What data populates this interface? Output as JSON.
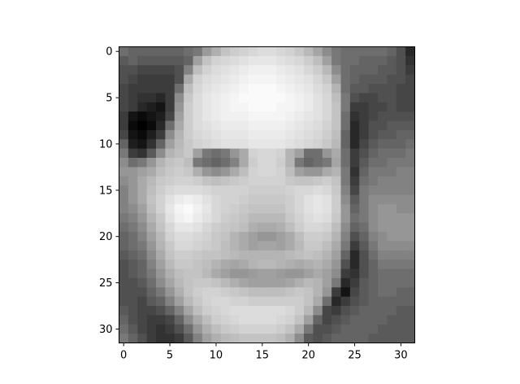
{
  "chart_data": {
    "type": "heatmap",
    "title": "",
    "xlabel": "",
    "ylabel": "",
    "colormap": "gray",
    "rows": 32,
    "cols": 32,
    "xlim": [
      -0.5,
      31.5
    ],
    "ylim": [
      31.5,
      -0.5
    ],
    "x_ticks": [
      0,
      5,
      10,
      15,
      20,
      25,
      30
    ],
    "x_tick_labels": [
      "0",
      "5",
      "10",
      "15",
      "20",
      "25",
      "30"
    ],
    "y_ticks": [
      0,
      5,
      10,
      15,
      20,
      25,
      30
    ],
    "y_tick_labels": [
      "0",
      "5",
      "10",
      "15",
      "20",
      "25",
      "30"
    ],
    "values": [
      [
        110,
        100,
        100,
        100,
        100,
        100,
        100,
        110,
        120,
        155,
        175,
        195,
        205,
        210,
        215,
        220,
        220,
        215,
        210,
        200,
        185,
        165,
        140,
        120,
        110,
        110,
        110,
        110,
        110,
        100,
        80,
        40
      ],
      [
        90,
        100,
        90,
        90,
        90,
        90,
        90,
        100,
        160,
        195,
        210,
        215,
        220,
        225,
        230,
        230,
        230,
        225,
        220,
        215,
        205,
        190,
        160,
        120,
        110,
        110,
        100,
        100,
        100,
        90,
        80,
        50
      ],
      [
        80,
        80,
        70,
        70,
        70,
        70,
        80,
        130,
        190,
        210,
        220,
        225,
        230,
        235,
        240,
        240,
        240,
        235,
        230,
        225,
        215,
        205,
        185,
        140,
        110,
        100,
        100,
        100,
        90,
        90,
        80,
        60
      ],
      [
        80,
        70,
        60,
        60,
        60,
        60,
        80,
        170,
        210,
        220,
        225,
        230,
        235,
        240,
        245,
        245,
        245,
        240,
        235,
        230,
        225,
        215,
        200,
        160,
        110,
        100,
        90,
        90,
        90,
        80,
        80,
        70
      ],
      [
        70,
        60,
        60,
        60,
        60,
        60,
        110,
        190,
        215,
        225,
        230,
        235,
        240,
        245,
        250,
        250,
        250,
        245,
        240,
        235,
        230,
        220,
        210,
        180,
        110,
        90,
        90,
        80,
        80,
        80,
        70,
        70
      ],
      [
        70,
        60,
        50,
        50,
        40,
        60,
        140,
        200,
        220,
        230,
        235,
        240,
        245,
        250,
        250,
        250,
        250,
        250,
        245,
        240,
        235,
        225,
        215,
        190,
        120,
        80,
        70,
        70,
        80,
        80,
        70,
        70
      ],
      [
        70,
        60,
        40,
        30,
        20,
        60,
        150,
        205,
        220,
        230,
        235,
        240,
        245,
        245,
        250,
        250,
        250,
        245,
        245,
        240,
        235,
        225,
        215,
        195,
        120,
        60,
        60,
        70,
        70,
        80,
        70,
        70
      ],
      [
        60,
        20,
        10,
        20,
        30,
        70,
        160,
        205,
        220,
        230,
        235,
        240,
        240,
        240,
        245,
        245,
        245,
        245,
        240,
        235,
        230,
        225,
        215,
        195,
        110,
        50,
        60,
        70,
        80,
        80,
        80,
        80
      ],
      [
        60,
        10,
        0,
        10,
        40,
        110,
        170,
        205,
        220,
        225,
        230,
        235,
        235,
        235,
        240,
        240,
        240,
        240,
        235,
        230,
        225,
        220,
        210,
        195,
        110,
        40,
        60,
        80,
        80,
        90,
        90,
        90
      ],
      [
        70,
        20,
        10,
        30,
        60,
        140,
        180,
        205,
        215,
        220,
        225,
        230,
        230,
        230,
        235,
        235,
        235,
        235,
        230,
        225,
        220,
        215,
        205,
        190,
        100,
        40,
        60,
        80,
        90,
        90,
        100,
        100
      ],
      [
        100,
        30,
        20,
        50,
        100,
        160,
        185,
        200,
        210,
        215,
        220,
        225,
        225,
        225,
        230,
        230,
        230,
        230,
        225,
        220,
        215,
        210,
        200,
        185,
        100,
        40,
        70,
        90,
        100,
        100,
        100,
        110
      ],
      [
        120,
        60,
        50,
        90,
        140,
        180,
        190,
        200,
        160,
        120,
        110,
        120,
        150,
        170,
        210,
        215,
        215,
        210,
        180,
        160,
        110,
        110,
        150,
        170,
        110,
        60,
        80,
        100,
        110,
        110,
        110,
        120
      ],
      [
        140,
        110,
        120,
        150,
        180,
        195,
        200,
        190,
        120,
        110,
        100,
        110,
        130,
        170,
        205,
        215,
        215,
        205,
        180,
        120,
        100,
        110,
        120,
        165,
        110,
        60,
        90,
        110,
        110,
        120,
        120,
        120
      ],
      [
        150,
        150,
        160,
        170,
        190,
        200,
        205,
        200,
        175,
        150,
        140,
        150,
        170,
        190,
        210,
        215,
        215,
        210,
        190,
        160,
        150,
        150,
        170,
        180,
        120,
        50,
        100,
        120,
        120,
        120,
        130,
        130
      ],
      [
        140,
        150,
        170,
        185,
        200,
        205,
        210,
        210,
        205,
        195,
        190,
        195,
        200,
        205,
        210,
        210,
        210,
        210,
        200,
        195,
        195,
        200,
        205,
        195,
        120,
        60,
        110,
        120,
        130,
        130,
        130,
        130
      ],
      [
        130,
        150,
        170,
        190,
        205,
        215,
        220,
        220,
        220,
        215,
        210,
        210,
        210,
        210,
        205,
        205,
        205,
        205,
        210,
        215,
        215,
        220,
        215,
        200,
        130,
        70,
        120,
        130,
        130,
        130,
        130,
        130
      ],
      [
        130,
        150,
        170,
        195,
        210,
        225,
        235,
        240,
        235,
        225,
        215,
        210,
        210,
        205,
        200,
        200,
        200,
        200,
        205,
        215,
        225,
        230,
        225,
        205,
        140,
        90,
        120,
        140,
        140,
        140,
        140,
        140
      ],
      [
        130,
        140,
        160,
        190,
        210,
        230,
        245,
        250,
        240,
        230,
        215,
        210,
        205,
        200,
        195,
        195,
        195,
        195,
        205,
        215,
        225,
        230,
        225,
        205,
        150,
        100,
        120,
        140,
        150,
        150,
        140,
        140
      ],
      [
        120,
        130,
        150,
        180,
        200,
        225,
        240,
        245,
        235,
        225,
        215,
        205,
        200,
        195,
        185,
        185,
        185,
        185,
        200,
        210,
        220,
        225,
        220,
        200,
        150,
        110,
        120,
        140,
        150,
        150,
        150,
        150
      ],
      [
        110,
        120,
        140,
        170,
        195,
        215,
        230,
        230,
        225,
        215,
        205,
        200,
        195,
        190,
        175,
        170,
        170,
        175,
        190,
        205,
        215,
        215,
        210,
        190,
        140,
        100,
        110,
        140,
        150,
        150,
        150,
        150
      ],
      [
        100,
        110,
        130,
        160,
        185,
        210,
        220,
        220,
        215,
        210,
        200,
        195,
        180,
        170,
        160,
        150,
        150,
        160,
        170,
        190,
        205,
        205,
        200,
        180,
        130,
        80,
        100,
        130,
        140,
        150,
        150,
        150
      ],
      [
        100,
        110,
        120,
        150,
        180,
        200,
        215,
        215,
        210,
        205,
        200,
        190,
        180,
        170,
        160,
        165,
        165,
        160,
        170,
        185,
        200,
        200,
        190,
        170,
        120,
        60,
        90,
        120,
        140,
        140,
        140,
        140
      ],
      [
        90,
        100,
        110,
        140,
        170,
        195,
        205,
        205,
        200,
        195,
        195,
        190,
        185,
        180,
        180,
        180,
        180,
        180,
        185,
        190,
        195,
        190,
        180,
        160,
        100,
        40,
        80,
        110,
        130,
        130,
        130,
        130
      ],
      [
        80,
        90,
        100,
        130,
        160,
        185,
        200,
        200,
        195,
        190,
        180,
        170,
        165,
        170,
        180,
        185,
        185,
        180,
        175,
        170,
        175,
        180,
        170,
        150,
        80,
        40,
        80,
        100,
        120,
        120,
        120,
        120
      ],
      [
        80,
        90,
        100,
        120,
        150,
        175,
        190,
        195,
        195,
        185,
        170,
        160,
        150,
        150,
        155,
        160,
        160,
        155,
        150,
        150,
        160,
        170,
        160,
        140,
        60,
        50,
        80,
        100,
        110,
        110,
        110,
        110
      ],
      [
        80,
        80,
        90,
        110,
        140,
        165,
        185,
        195,
        200,
        200,
        195,
        185,
        175,
        165,
        160,
        160,
        160,
        160,
        165,
        175,
        185,
        180,
        160,
        120,
        40,
        60,
        90,
        100,
        110,
        110,
        110,
        110
      ],
      [
        80,
        80,
        80,
        100,
        120,
        150,
        175,
        195,
        205,
        210,
        210,
        205,
        200,
        195,
        190,
        190,
        190,
        190,
        195,
        200,
        195,
        180,
        150,
        60,
        20,
        70,
        90,
        100,
        110,
        110,
        100,
        100
      ],
      [
        80,
        80,
        70,
        90,
        100,
        130,
        160,
        185,
        200,
        210,
        215,
        215,
        210,
        210,
        205,
        205,
        205,
        205,
        205,
        205,
        195,
        170,
        110,
        40,
        60,
        80,
        90,
        100,
        100,
        100,
        100,
        100
      ],
      [
        90,
        80,
        70,
        70,
        80,
        100,
        130,
        165,
        190,
        205,
        210,
        215,
        220,
        220,
        220,
        220,
        220,
        220,
        215,
        205,
        185,
        140,
        70,
        60,
        80,
        90,
        100,
        100,
        100,
        100,
        90,
        90
      ],
      [
        100,
        80,
        70,
        60,
        60,
        70,
        100,
        140,
        170,
        190,
        205,
        210,
        215,
        220,
        220,
        220,
        220,
        215,
        210,
        195,
        160,
        100,
        70,
        80,
        90,
        100,
        100,
        100,
        100,
        90,
        90,
        90
      ],
      [
        110,
        90,
        70,
        60,
        50,
        60,
        80,
        110,
        150,
        175,
        190,
        200,
        205,
        210,
        210,
        210,
        210,
        205,
        195,
        170,
        120,
        80,
        80,
        90,
        100,
        100,
        100,
        100,
        90,
        90,
        90,
        90
      ],
      [
        120,
        100,
        80,
        60,
        50,
        50,
        60,
        90,
        130,
        160,
        175,
        185,
        190,
        195,
        195,
        195,
        195,
        190,
        175,
        140,
        90,
        80,
        90,
        100,
        100,
        100,
        100,
        90,
        90,
        90,
        90,
        90
      ]
    ]
  }
}
